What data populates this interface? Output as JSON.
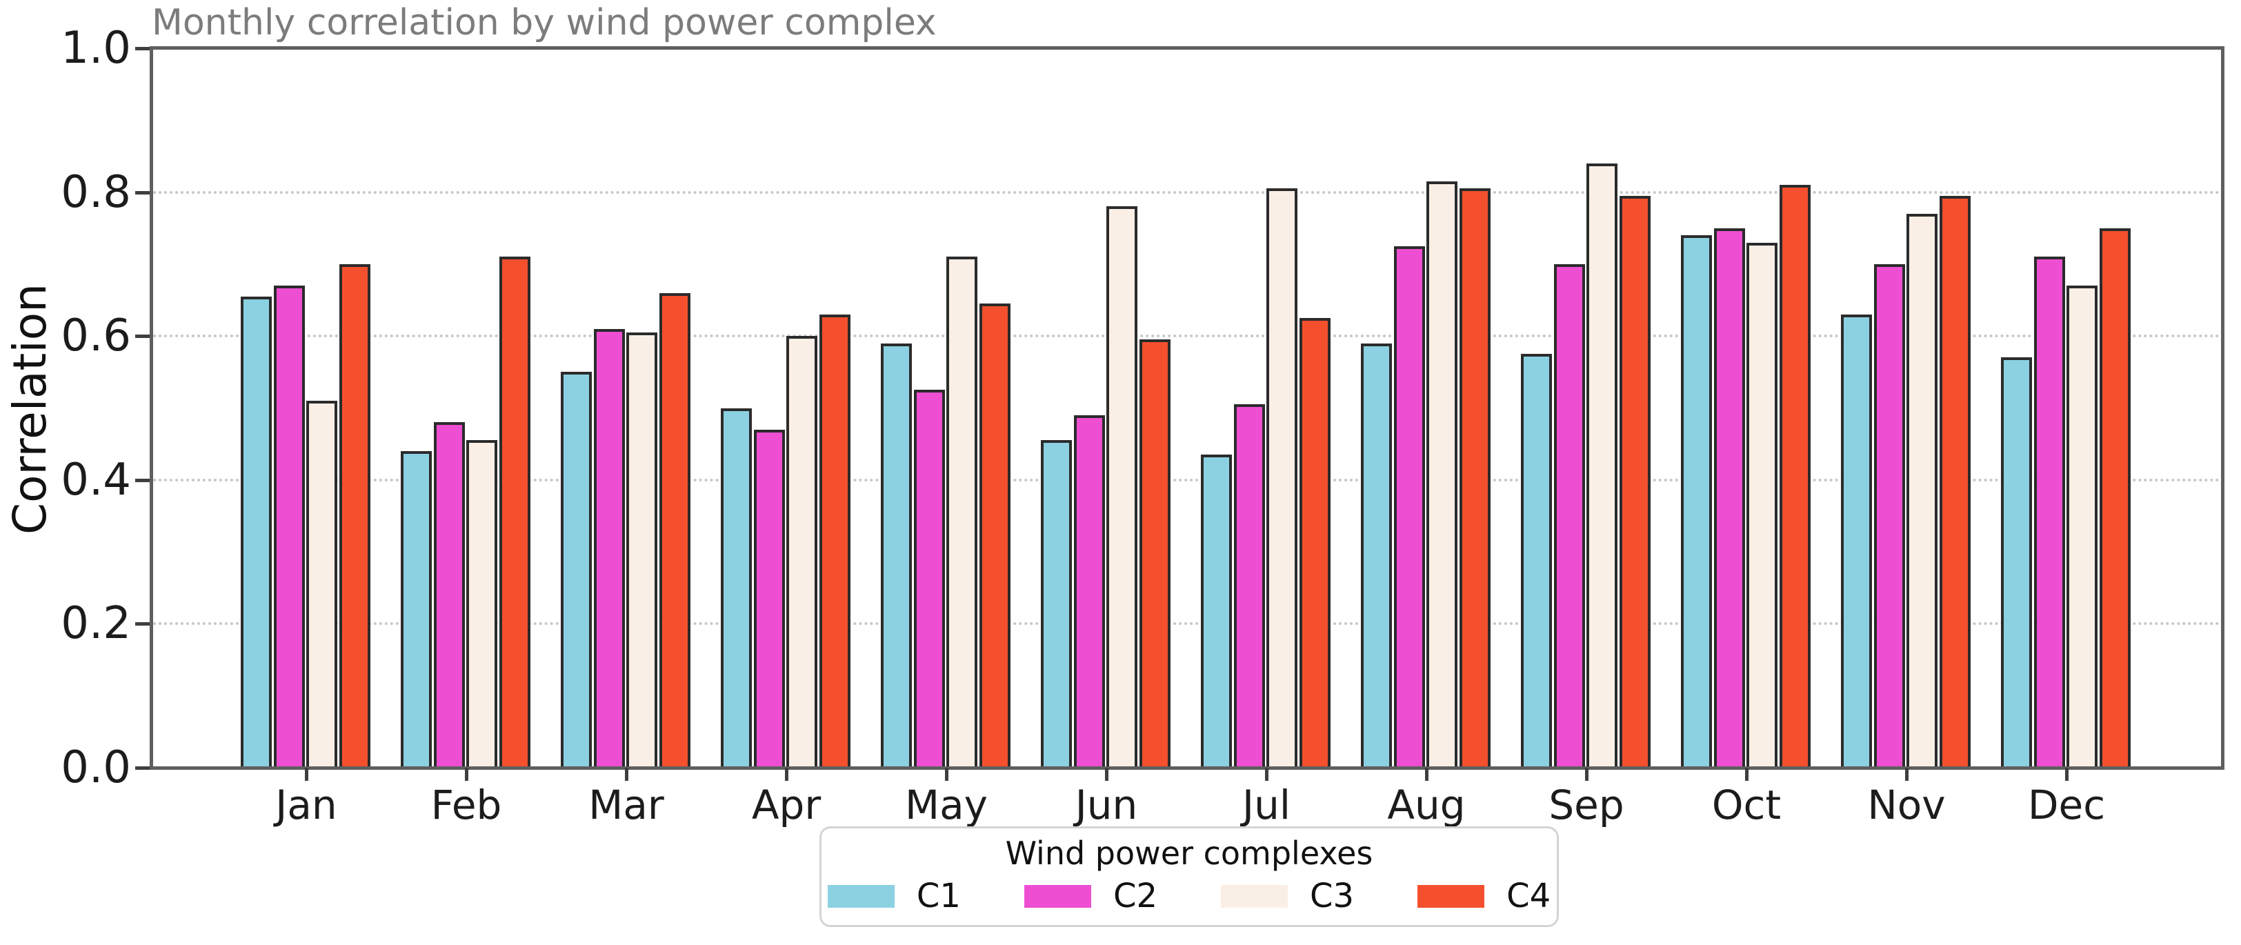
{
  "chart_data": {
    "type": "bar",
    "title": "Monthly correlation by wind power complex",
    "xlabel": "",
    "ylabel": "Correlation",
    "categories": [
      "Jan",
      "Feb",
      "Mar",
      "Apr",
      "May",
      "Jun",
      "Jul",
      "Aug",
      "Sep",
      "Oct",
      "Nov",
      "Dec"
    ],
    "series": [
      {
        "name": "C1",
        "color": "#8bd1e2",
        "values": [
          0.655,
          0.44,
          0.55,
          0.5,
          0.59,
          0.455,
          0.435,
          0.59,
          0.575,
          0.74,
          0.63,
          0.57
        ]
      },
      {
        "name": "C2",
        "color": "#ee4ed2",
        "values": [
          0.67,
          0.48,
          0.61,
          0.47,
          0.525,
          0.49,
          0.505,
          0.725,
          0.7,
          0.75,
          0.7,
          0.71
        ]
      },
      {
        "name": "C3",
        "color": "#faefe6",
        "values": [
          0.51,
          0.455,
          0.605,
          0.6,
          0.71,
          0.78,
          0.805,
          0.815,
          0.84,
          0.73,
          0.77,
          0.67
        ]
      },
      {
        "name": "C4",
        "color": "#f4502d",
        "values": [
          0.7,
          0.71,
          0.66,
          0.63,
          0.645,
          0.595,
          0.625,
          0.805,
          0.795,
          0.81,
          0.795,
          0.75
        ]
      }
    ],
    "ylim": [
      0.0,
      1.0
    ],
    "yticks": [
      "0.0",
      "0.2",
      "0.4",
      "0.6",
      "0.8",
      "1.0"
    ],
    "grid": "horizontal dotted at 0.2 intervals",
    "legend_title": "Wind power complexes",
    "legend_position": "bottom-center",
    "bar_edge_color": "#2b2b2b"
  }
}
